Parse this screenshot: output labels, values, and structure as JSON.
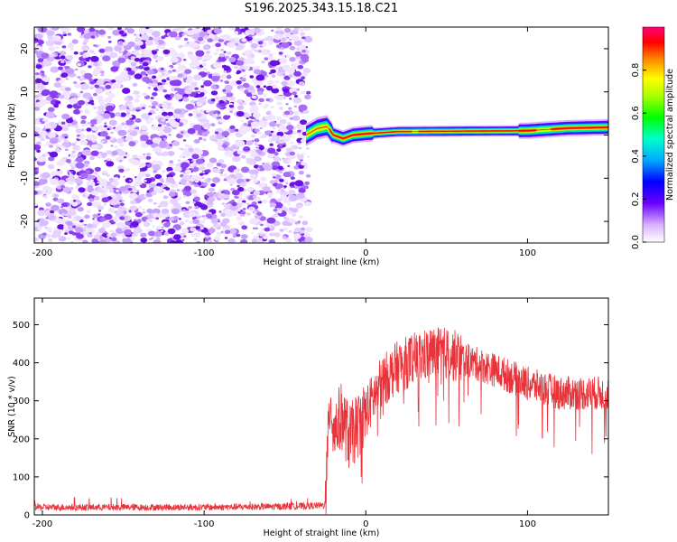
{
  "chart_data": [
    {
      "type": "heatmap",
      "title": "S196.2025.343.15.18.C21",
      "xlabel": "Height of straight line (km)",
      "ylabel": "Frequency (Hz)",
      "xlim": [
        -205,
        150
      ],
      "ylim": [
        -25,
        25
      ],
      "xticks": [
        -200,
        -100,
        0,
        100
      ],
      "xtick_labels": [
        "-200",
        "-100",
        "0",
        "100"
      ],
      "yticks": [
        -20,
        -10,
        0,
        10,
        20
      ],
      "ytick_labels": [
        "-20",
        "-10",
        "0",
        "10",
        "20"
      ],
      "noise_region_km": [
        -205,
        -35
      ],
      "signal_track": [
        {
          "x": -37,
          "f": 0.0
        },
        {
          "x": -30,
          "f": 1.5
        },
        {
          "x": -24,
          "f": 2.0
        },
        {
          "x": -20,
          "f": 0.0
        },
        {
          "x": -14,
          "f": -0.8
        },
        {
          "x": -8,
          "f": 0.0
        },
        {
          "x": 0,
          "f": 0.3
        },
        {
          "x": 20,
          "f": 0.8
        },
        {
          "x": 60,
          "f": 0.9
        },
        {
          "x": 100,
          "f": 1.0
        },
        {
          "x": 125,
          "f": 1.6
        },
        {
          "x": 150,
          "f": 1.8
        }
      ],
      "colorbar": {
        "label": "Normalized spectral amplitude",
        "ticks": [
          0.0,
          0.2,
          0.4,
          0.6,
          0.8
        ],
        "tick_labels": [
          "0.0",
          "0.2",
          "0.4",
          "0.6",
          "0.8"
        ],
        "range": [
          0,
          1
        ]
      },
      "grid": false
    },
    {
      "type": "line",
      "xlabel": "Height of straight line (km)",
      "ylabel": "SNR (10 * v/v)",
      "xlim": [
        -205,
        150
      ],
      "ylim": [
        0,
        570
      ],
      "xticks": [
        -200,
        -100,
        0,
        100
      ],
      "xtick_labels": [
        "-200",
        "-100",
        "0",
        "100"
      ],
      "yticks": [
        0,
        100,
        200,
        300,
        400,
        500
      ],
      "ytick_labels": [
        "0",
        "100",
        "200",
        "300",
        "400",
        "500"
      ],
      "series": [
        {
          "name": "SNR",
          "color": "#e8333a",
          "envelope_x": [
            -205,
            -150,
            -100,
            -50,
            -25,
            -22,
            -20,
            -15,
            -10,
            0,
            10,
            20,
            30,
            40,
            50,
            60,
            80,
            100,
            120,
            150
          ],
          "envelope_y": [
            20,
            20,
            20,
            22,
            25,
            320,
            220,
            260,
            200,
            270,
            350,
            390,
            410,
            425,
            425,
            410,
            380,
            345,
            320,
            320
          ]
        }
      ],
      "grid": false
    }
  ],
  "colors": {
    "line": "#e8333a",
    "noise": "#7b2fe6",
    "frame": "#000000",
    "background": "#ffffff"
  }
}
